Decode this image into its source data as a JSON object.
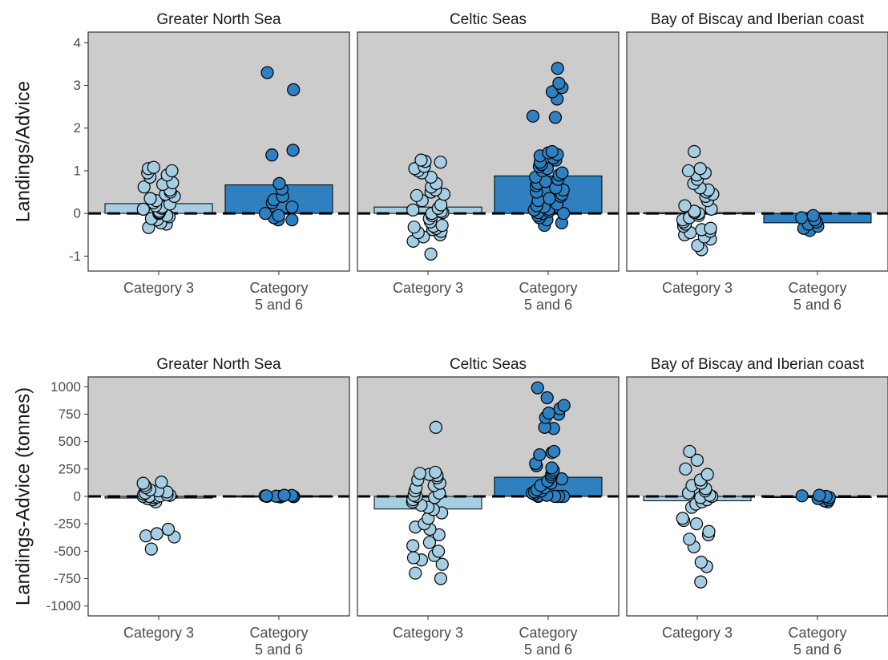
{
  "chart_data": [
    {
      "type": "scatter",
      "title": "",
      "ylabel": "Landings/Advice",
      "ylim": [
        -1.35,
        4.25
      ],
      "yticks": [
        -1,
        0,
        1,
        2,
        3,
        4
      ],
      "ytick_labels": [
        "-1",
        "0",
        "1",
        "2",
        "3",
        "4"
      ],
      "reference_line": 0,
      "categories": [
        {
          "label_lines": [
            "Category 3"
          ],
          "color": "#a6cee3"
        },
        {
          "label_lines": [
            "Category",
            "5 and 6"
          ],
          "color": "#2e80c0"
        }
      ],
      "panels": [
        {
          "title": "Greater North Sea",
          "bars": [
            0.23,
            0.67
          ],
          "points": [
            [
              -0.33,
              -0.25,
              -0.22,
              -0.15,
              -0.12,
              -0.08,
              -0.05,
              0.0,
              0.02,
              0.05,
              0.1,
              0.12,
              0.15,
              0.18,
              0.22,
              0.25,
              0.3,
              0.35,
              0.4,
              0.45,
              0.5,
              0.55,
              0.62,
              0.68,
              0.72,
              0.85,
              0.9,
              0.95,
              1.0,
              1.05,
              1.08
            ],
            [
              -0.15,
              -0.15,
              -0.1,
              -0.05,
              0.0,
              0.15,
              0.25,
              0.32,
              0.4,
              0.57,
              0.7,
              1.37,
              1.48,
              2.9,
              3.3
            ]
          ]
        },
        {
          "title": "Celtic Seas",
          "bars": [
            0.15,
            0.88
          ],
          "points": [
            [
              -0.95,
              -0.65,
              -0.55,
              -0.5,
              -0.45,
              -0.42,
              -0.38,
              -0.35,
              -0.32,
              -0.3,
              -0.28,
              -0.2,
              -0.12,
              -0.05,
              0.0,
              0.02,
              0.05,
              0.08,
              0.12,
              0.2,
              0.3,
              0.42,
              0.45,
              0.5,
              0.55,
              0.62,
              0.7,
              0.85,
              0.95,
              1.0,
              1.05,
              1.1,
              1.2,
              1.22,
              1.25
            ],
            [
              -0.28,
              -0.22,
              -0.15,
              -0.1,
              -0.05,
              0.0,
              0.0,
              0.02,
              0.05,
              0.08,
              0.1,
              0.15,
              0.18,
              0.22,
              0.3,
              0.35,
              0.4,
              0.45,
              0.5,
              0.55,
              0.6,
              0.65,
              0.7,
              0.75,
              0.8,
              0.85,
              0.9,
              0.95,
              1.0,
              1.05,
              1.1,
              1.15,
              1.2,
              1.25,
              1.3,
              1.35,
              1.38,
              1.42,
              1.45,
              2.25,
              2.28,
              2.68,
              2.85,
              2.95,
              3.05,
              3.4
            ]
          ]
        },
        {
          "title": "Bay of Biscay and Iberian coast",
          "bars": [
            0.02,
            -0.22
          ],
          "points": [
            [
              -0.85,
              -0.75,
              -0.6,
              -0.55,
              -0.5,
              -0.45,
              -0.42,
              -0.38,
              -0.35,
              -0.3,
              -0.25,
              -0.2,
              -0.15,
              -0.1,
              -0.05,
              0.0,
              0.02,
              0.05,
              0.1,
              0.18,
              0.3,
              0.4,
              0.45,
              0.5,
              0.55,
              0.6,
              0.7,
              0.8,
              0.9,
              0.95,
              1.0,
              1.05,
              1.45
            ],
            [
              -0.4,
              -0.35,
              -0.3,
              -0.25,
              -0.2,
              -0.15,
              -0.1,
              -0.05
            ]
          ]
        }
      ]
    },
    {
      "type": "scatter",
      "title": "",
      "ylabel": "Landings-Advice (tonnes)",
      "ylim": [
        -1090,
        1090
      ],
      "yticks": [
        -1000,
        -750,
        -500,
        -250,
        0,
        250,
        500,
        750,
        1000
      ],
      "ytick_labels": [
        "-1000",
        "-750",
        "-500",
        "-250",
        "0",
        "250",
        "500",
        "750",
        "1000"
      ],
      "reference_line": 0,
      "categories": [
        {
          "label_lines": [
            "Category 3"
          ],
          "color": "#a6cee3"
        },
        {
          "label_lines": [
            "Category",
            "5 and 6"
          ],
          "color": "#2e80c0"
        }
      ],
      "panels": [
        {
          "title": "Greater North Sea",
          "bars": [
            -15,
            5
          ],
          "points": [
            [
              -480,
              -370,
              -360,
              -340,
              -300,
              -50,
              -30,
              -20,
              -10,
              -5,
              0,
              0,
              5,
              10,
              15,
              20,
              30,
              40,
              50,
              60,
              80,
              100,
              120,
              130
            ],
            [
              -5,
              -2,
              0,
              0,
              0,
              2,
              5,
              5,
              8,
              10
            ]
          ]
        },
        {
          "title": "Celtic Seas",
          "bars": [
            -115,
            175
          ],
          "points": [
            [
              -750,
              -700,
              -620,
              -580,
              -560,
              -540,
              -500,
              -450,
              -420,
              -350,
              -300,
              -280,
              -250,
              -200,
              -150,
              -120,
              -100,
              -80,
              -50,
              -30,
              -10,
              0,
              10,
              30,
              50,
              80,
              100,
              120,
              150,
              170,
              190,
              200,
              210,
              220,
              630
            ],
            [
              0,
              0,
              0,
              0,
              0,
              0,
              0,
              5,
              10,
              20,
              30,
              40,
              50,
              60,
              80,
              100,
              120,
              140,
              160,
              180,
              200,
              220,
              240,
              260,
              280,
              300,
              380,
              400,
              410,
              620,
              630,
              720,
              750,
              760,
              800,
              830,
              900,
              990
            ]
          ]
        },
        {
          "title": "Bay of Biscay and Iberian coast",
          "bars": [
            -40,
            -10
          ],
          "points": [
            [
              -780,
              -640,
              -600,
              -460,
              -390,
              -350,
              -320,
              -250,
              -220,
              -200,
              -100,
              -70,
              -50,
              -30,
              -10,
              0,
              10,
              30,
              50,
              70,
              100,
              120,
              150,
              200,
              250,
              330,
              410
            ],
            [
              -50,
              -40,
              -30,
              -20,
              -10,
              0,
              5,
              10
            ]
          ]
        }
      ]
    }
  ]
}
